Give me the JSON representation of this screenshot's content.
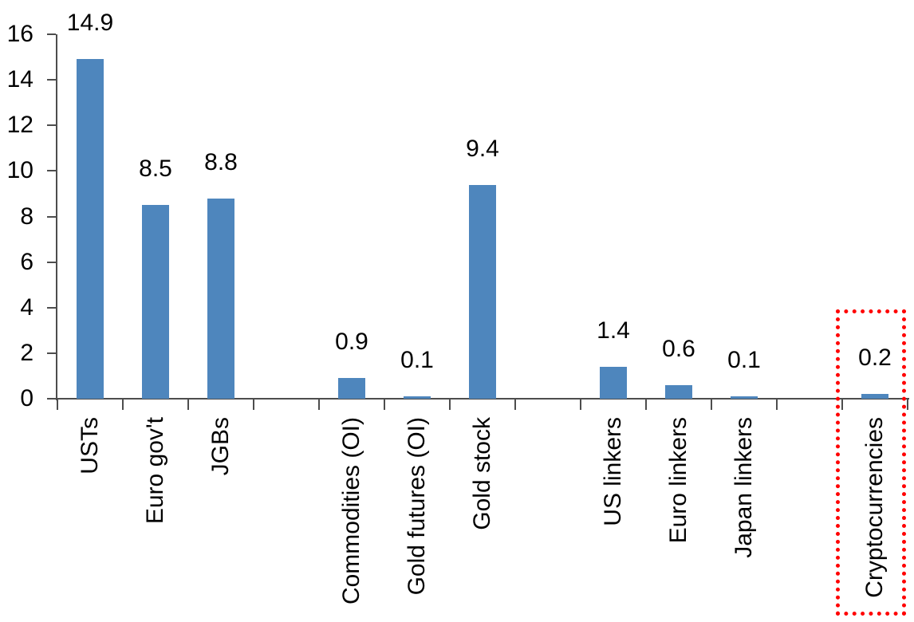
{
  "chart_data": {
    "type": "bar",
    "title": "",
    "xlabel": "",
    "ylabel": "",
    "ylim": [
      0,
      16
    ],
    "yticks": [
      0,
      2,
      4,
      6,
      8,
      10,
      12,
      14,
      16
    ],
    "grid": false,
    "legend": "none",
    "slots": 13,
    "bar_color": "#4E86BD",
    "axis_color": "#4D4D4D",
    "text_color": "#000000",
    "highlight_color": "#FF0000",
    "categories": [
      "USTs",
      "Euro gov't",
      "JGBs",
      "Commodities (OI)",
      "Gold futures (OI)",
      "Gold stock",
      "US linkers",
      "Euro linkers",
      "Japan linkers",
      "Cryptocurrencies"
    ],
    "values": [
      14.9,
      8.5,
      8.8,
      0.9,
      0.1,
      9.4,
      1.4,
      0.6,
      0.1,
      0.2
    ],
    "bars": [
      {
        "label": "USTs",
        "value": 14.9,
        "value_label": "14.9",
        "slot": 0,
        "highlighted": false
      },
      {
        "label": "Euro gov't",
        "value": 8.5,
        "value_label": "8.5",
        "slot": 1,
        "highlighted": false
      },
      {
        "label": "JGBs",
        "value": 8.8,
        "value_label": "8.8",
        "slot": 2,
        "highlighted": false
      },
      {
        "label": "Commodities (OI)",
        "value": 0.9,
        "value_label": "0.9",
        "slot": 4,
        "highlighted": false
      },
      {
        "label": "Gold futures (OI)",
        "value": 0.1,
        "value_label": "0.1",
        "slot": 5,
        "highlighted": false
      },
      {
        "label": "Gold stock",
        "value": 9.4,
        "value_label": "9.4",
        "slot": 6,
        "highlighted": false
      },
      {
        "label": "US linkers",
        "value": 1.4,
        "value_label": "1.4",
        "slot": 8,
        "highlighted": false
      },
      {
        "label": "Euro linkers",
        "value": 0.6,
        "value_label": "0.6",
        "slot": 9,
        "highlighted": false
      },
      {
        "label": "Japan linkers",
        "value": 0.1,
        "value_label": "0.1",
        "slot": 10,
        "highlighted": false
      },
      {
        "label": "Cryptocurrencies",
        "value": 0.2,
        "value_label": "0.2",
        "slot": 12,
        "highlighted": true
      }
    ],
    "annotations": [
      {
        "type": "red-dotted-box",
        "target": "Cryptocurrencies"
      }
    ]
  }
}
